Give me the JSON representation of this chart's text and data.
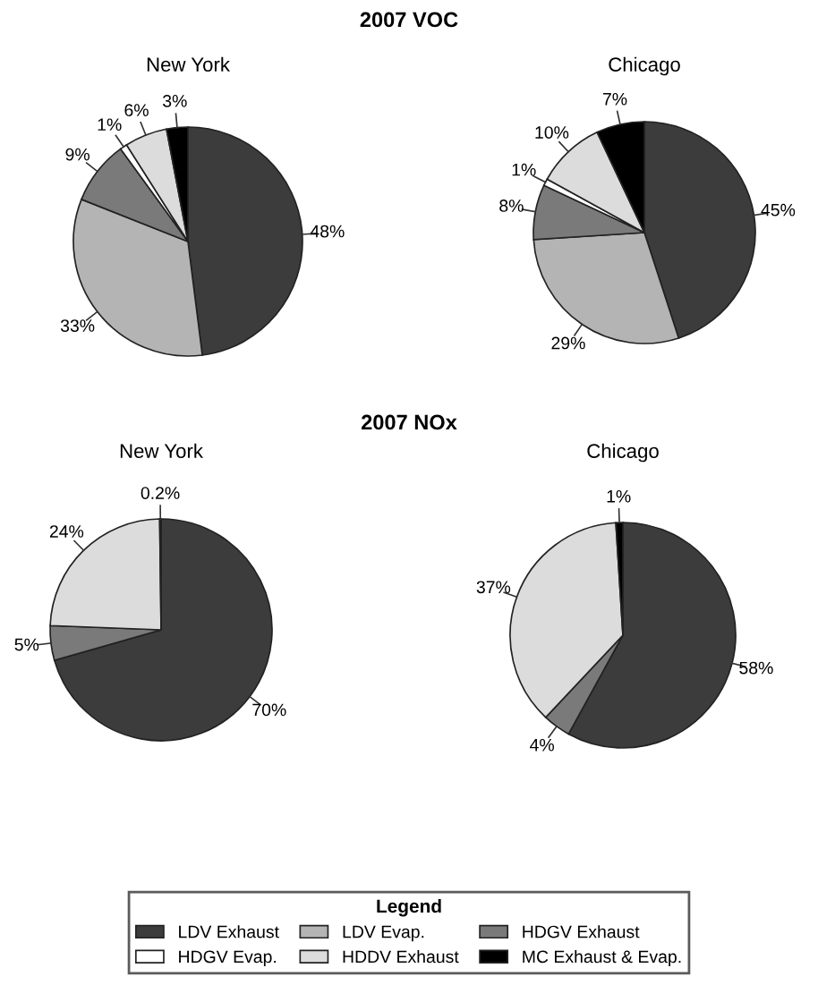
{
  "chart_data": [
    {
      "type": "pie",
      "title": "New York",
      "annotations": [
        "2007 VOC"
      ],
      "legend": "bottom",
      "legend_title": "Legend",
      "categories": [
        "LDV Exhaust",
        "LDV Evap.",
        "HDGV Exhaust",
        "HDGV Evap.",
        "HDDV Exhaust",
        "MC Exhaust & Evap."
      ],
      "values": [
        48,
        33,
        9,
        1,
        6,
        3
      ],
      "value_labels": [
        "48%",
        "33%",
        "9%",
        "1%",
        "6%",
        "3%"
      ],
      "colors": [
        "#3c3c3c",
        "#b4b4b4",
        "#7a7a7a",
        "#ffffff",
        "#dcdcdc",
        "#000000"
      ]
    },
    {
      "type": "pie",
      "title": "Chicago",
      "categories": [
        null,
        null,
        null,
        null,
        null,
        null
      ],
      "values": [
        45,
        29,
        8,
        1,
        10,
        7
      ],
      "value_labels": [
        "45%",
        "29%",
        "8%",
        "1%",
        "10%",
        "7%"
      ],
      "colors": [
        "#3c3c3c",
        "#b4b4b4",
        "#7a7a7a",
        "#ffffff",
        "#dcdcdc",
        "#000000"
      ]
    },
    {
      "type": "pie",
      "title": "New York",
      "annotations": [
        "2007 NOx"
      ],
      "categories": [
        null,
        null,
        null,
        null
      ],
      "values": [
        70,
        5,
        24,
        0.2
      ],
      "value_labels": [
        "70%",
        "5%",
        "24%",
        "0.2%"
      ],
      "colors": [
        "#3c3c3c",
        "#7a7a7a",
        "#dcdcdc",
        "#000000"
      ]
    },
    {
      "type": "pie",
      "title": "Chicago",
      "categories": [
        null,
        null,
        null,
        null
      ],
      "values": [
        58,
        4,
        37,
        1
      ],
      "value_labels": [
        "58%",
        "4%",
        "37%",
        "1%"
      ],
      "colors": [
        "#3c3c3c",
        "#7a7a7a",
        "#dcdcdc",
        "#000000"
      ]
    }
  ]
}
